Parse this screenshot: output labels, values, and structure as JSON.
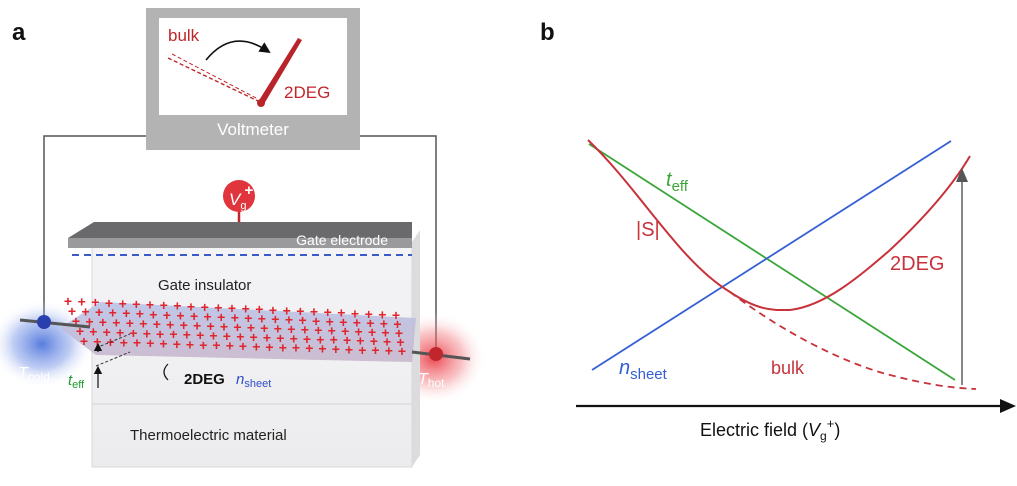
{
  "panel_a": {
    "letter": "a",
    "meter": {
      "label": "Voltmeter",
      "bulk_label": "bulk",
      "twodeg_label": "2DEG"
    },
    "gate": {
      "symbol": "V",
      "subscript": "g",
      "superscript": "+"
    },
    "layers": {
      "gate_electrode": "Gate electrode",
      "gate_insulator": "Gate insulator",
      "thermoelectric": "Thermoelectric material"
    },
    "twodeg": {
      "label": "2DEG",
      "n_symbol": "n",
      "n_subscript": "sheet"
    },
    "teff": {
      "symbol": "t",
      "subscript": "eff"
    },
    "t_cold": {
      "symbol": "T",
      "subscript": "cold"
    },
    "t_hot": {
      "symbol": "T",
      "subscript": "hot"
    },
    "colors": {
      "red": "#d0282e",
      "blue": "#2f4fc8",
      "green": "#1d9a2b",
      "gray": "#8c8c8c"
    }
  },
  "panel_b": {
    "letter": "b",
    "x_axis": {
      "label_main": "Electric field (",
      "label_symbol": "V",
      "label_sub": "g",
      "label_sup": "+",
      "label_end": ")"
    },
    "curves": {
      "t_eff": {
        "symbol": "t",
        "subscript": "eff",
        "color": "#3aa63a"
      },
      "S": {
        "label": "|S|",
        "color": "#c8323a"
      },
      "twodeg": {
        "label": "2DEG",
        "color": "#c8323a"
      },
      "bulk": {
        "label": "bulk",
        "color": "#c8323a"
      },
      "n_sheet": {
        "symbol": "n",
        "subscript": "sheet",
        "color": "#3560d4"
      }
    }
  }
}
